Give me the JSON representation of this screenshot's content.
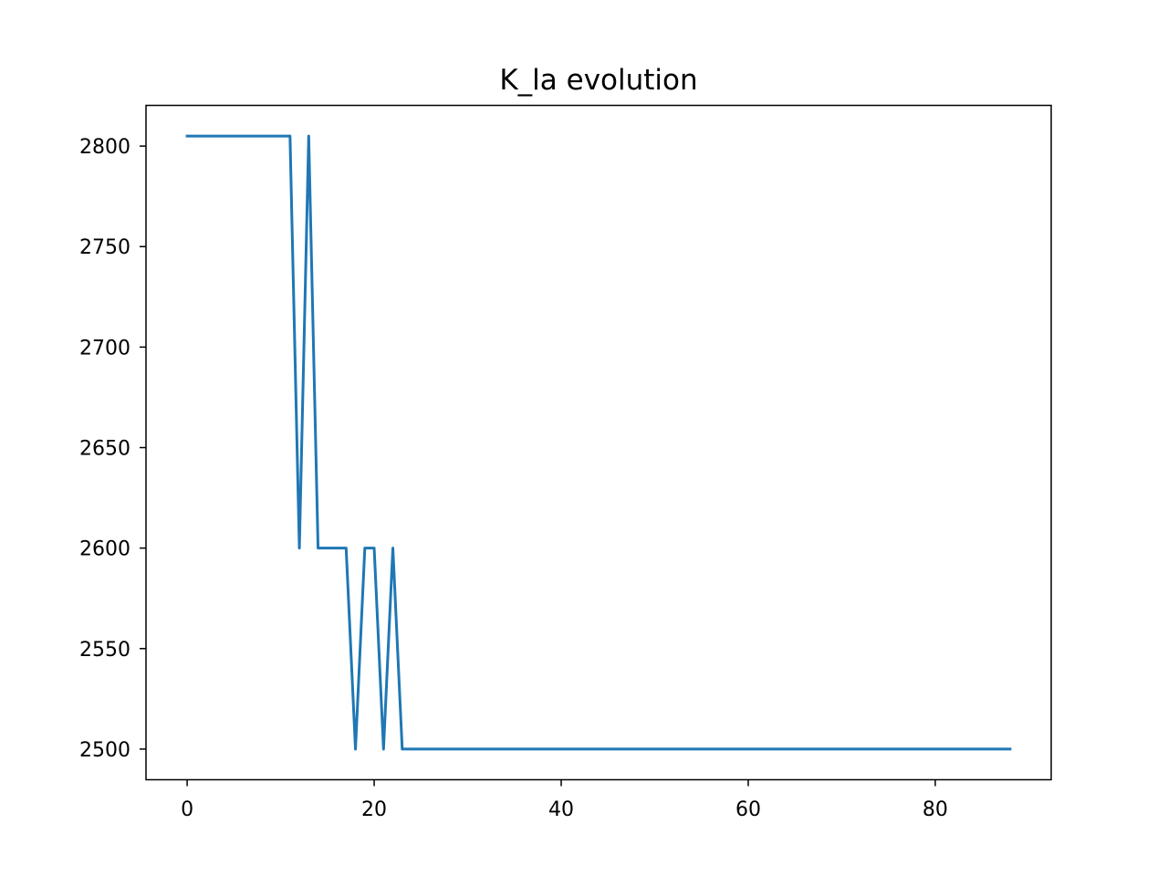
{
  "chart_data": {
    "type": "line",
    "title": "K_la evolution",
    "xlabel": "",
    "ylabel": "",
    "xlim": [
      -4.4,
      92.4
    ],
    "ylim": [
      2484.75,
      2820.25
    ],
    "xticks": [
      0,
      20,
      40,
      60,
      80
    ],
    "yticks": [
      2500,
      2550,
      2600,
      2650,
      2700,
      2750,
      2800
    ],
    "grid": false,
    "legend": "none",
    "series": [
      {
        "color": "#1f77b4",
        "x": [
          0,
          1,
          2,
          3,
          4,
          5,
          6,
          7,
          8,
          9,
          10,
          11,
          12,
          13,
          14,
          15,
          16,
          17,
          18,
          19,
          20,
          21,
          22,
          23,
          24,
          25,
          26,
          27,
          28,
          29,
          30,
          31,
          32,
          33,
          34,
          35,
          36,
          37,
          38,
          39,
          40,
          41,
          42,
          43,
          44,
          45,
          46,
          47,
          48,
          49,
          50,
          51,
          52,
          53,
          54,
          55,
          56,
          57,
          58,
          59,
          60,
          61,
          62,
          63,
          64,
          65,
          66,
          67,
          68,
          69,
          70,
          71,
          72,
          73,
          74,
          75,
          76,
          77,
          78,
          79,
          80,
          81,
          82,
          83,
          84,
          85,
          86,
          87,
          88
        ],
        "y": [
          2805,
          2805,
          2805,
          2805,
          2805,
          2805,
          2805,
          2805,
          2805,
          2805,
          2805,
          2805,
          2600,
          2805,
          2600,
          2600,
          2600,
          2600,
          2500,
          2600,
          2600,
          2500,
          2600,
          2500,
          2500,
          2500,
          2500,
          2500,
          2500,
          2500,
          2500,
          2500,
          2500,
          2500,
          2500,
          2500,
          2500,
          2500,
          2500,
          2500,
          2500,
          2500,
          2500,
          2500,
          2500,
          2500,
          2500,
          2500,
          2500,
          2500,
          2500,
          2500,
          2500,
          2500,
          2500,
          2500,
          2500,
          2500,
          2500,
          2500,
          2500,
          2500,
          2500,
          2500,
          2500,
          2500,
          2500,
          2500,
          2500,
          2500,
          2500,
          2500,
          2500,
          2500,
          2500,
          2500,
          2500,
          2500,
          2500,
          2500,
          2500,
          2500,
          2500,
          2500,
          2500,
          2500,
          2500,
          2500,
          2500
        ]
      }
    ]
  }
}
